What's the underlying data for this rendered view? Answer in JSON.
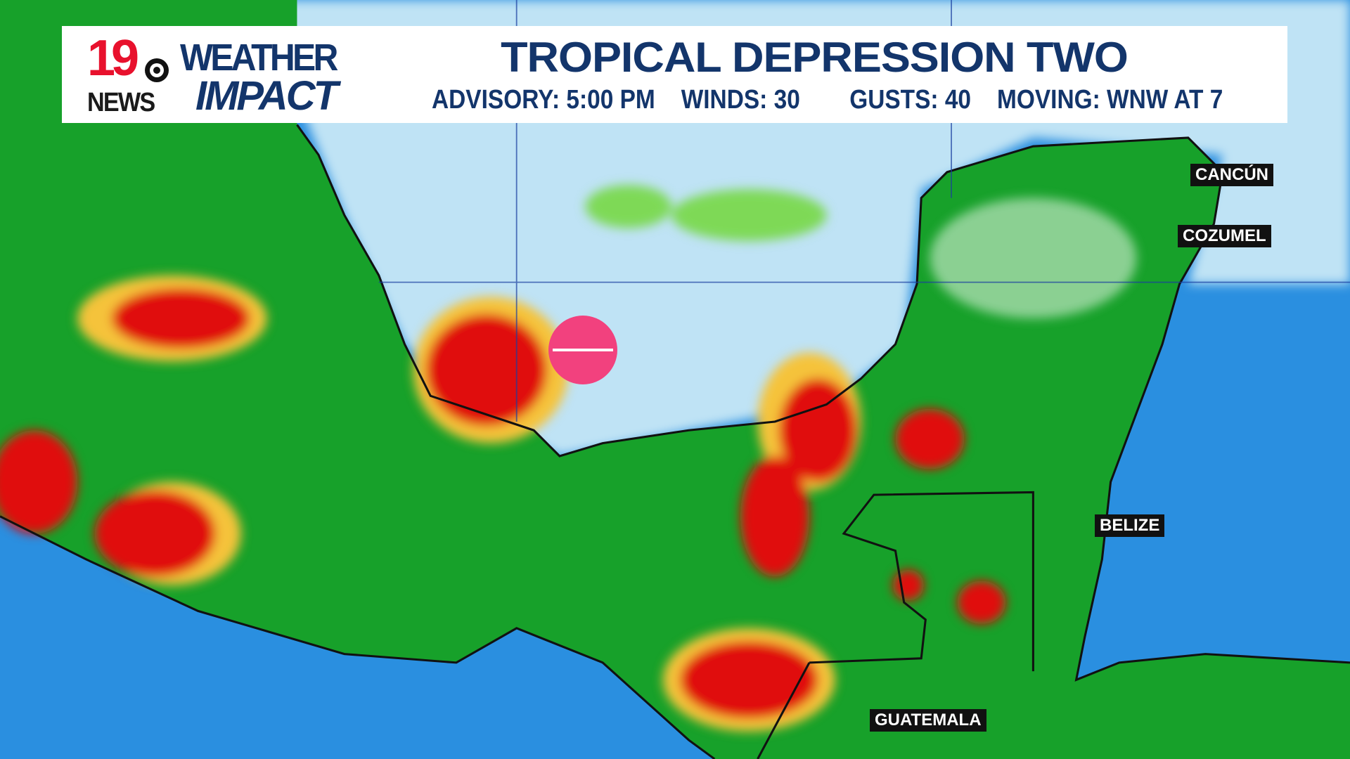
{
  "header": {
    "logo_number": "19",
    "logo_network": "NEWS",
    "brand_line1": "WEATHER",
    "brand_line2": "IMPACT",
    "title": "TROPICAL DEPRESSION TWO",
    "advisory": "ADVISORY: 5:00 PM",
    "winds": "WINDS: 30",
    "gusts": "GUSTS: 40",
    "moving": "MOVING: WNW AT 7"
  },
  "map": {
    "labels": {
      "cancun": "CANCÚN",
      "cozumel": "COZUMEL",
      "belize": "BELIZE",
      "guatemala": "GUATEMALA"
    },
    "storm_symbol": "tropical-depression-icon",
    "colors": {
      "ocean": "#2a8fe0",
      "gulf": "#bfe3f5",
      "land_rain": "#17a12a",
      "heavy_rain": "#e01010",
      "moderate_rain": "#f5c33b",
      "storm": "#f2417e",
      "title_text": "#13356b",
      "logo_red": "#e8112d"
    }
  }
}
